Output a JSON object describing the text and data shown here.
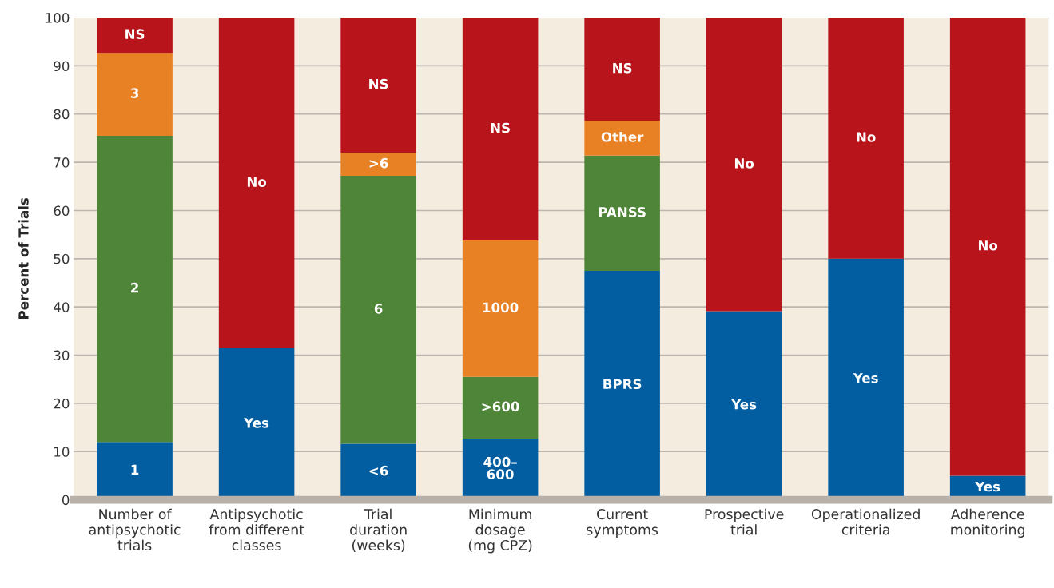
{
  "chart_data": {
    "type": "bar",
    "stacked": true,
    "ylabel": "Percent of Trials",
    "categories": [
      "Number of\nantipsychotic\ntrials",
      "Antipsychotic\nfrom different\nclasses",
      "Trial\nduration\n(weeks)",
      "Minimum\ndosage\n(mg CPZ)",
      "Current\nsymptoms",
      "Prospective\ntrial",
      "Operationalized\ncriteria",
      "Adherence\nmonitoring"
    ],
    "series": [
      {
        "name": "1",
        "color": "#035ea1",
        "values": [
          12.0,
          null,
          null,
          null,
          null,
          null,
          null,
          null
        ]
      },
      {
        "name": "Yes",
        "color": "#035ea1",
        "values": [
          null,
          31.4,
          null,
          null,
          null,
          39.1,
          50.0,
          5.0
        ]
      },
      {
        "name": "<6",
        "color": "#035ea1",
        "values": [
          null,
          null,
          11.6,
          null,
          null,
          null,
          null,
          null
        ]
      },
      {
        "name": "400–\n600",
        "color": "#035ea1",
        "values": [
          null,
          null,
          null,
          12.7,
          null,
          null,
          null,
          null
        ]
      },
      {
        "name": "BPRS",
        "color": "#035ea1",
        "values": [
          null,
          null,
          null,
          null,
          47.5,
          null,
          null,
          null
        ]
      },
      {
        "name": "2",
        "color": "#4f8538",
        "values": [
          63.5,
          null,
          null,
          null,
          null,
          null,
          null,
          null
        ]
      },
      {
        "name": "6",
        "color": "#4f8538",
        "values": [
          null,
          null,
          55.6,
          null,
          null,
          null,
          null,
          null
        ]
      },
      {
        "name": ">600",
        "color": "#4f8538",
        "values": [
          null,
          null,
          null,
          12.8,
          null,
          null,
          null,
          null
        ]
      },
      {
        "name": "PANSS",
        "color": "#4f8538",
        "values": [
          null,
          null,
          null,
          null,
          23.9,
          null,
          null,
          null
        ]
      },
      {
        "name": "3",
        "color": "#e88024",
        "values": [
          17.2,
          null,
          null,
          null,
          null,
          null,
          null,
          null
        ]
      },
      {
        "name": ">6",
        "color": "#e88024",
        "values": [
          null,
          null,
          4.8,
          null,
          null,
          null,
          null,
          null
        ]
      },
      {
        "name": "1000",
        "color": "#e88024",
        "values": [
          null,
          null,
          null,
          28.3,
          null,
          null,
          null,
          null
        ]
      },
      {
        "name": "Other",
        "color": "#e88024",
        "values": [
          null,
          null,
          null,
          null,
          7.2,
          null,
          null,
          null
        ]
      },
      {
        "name": "NS",
        "color": "#b8141b",
        "values": [
          7.3,
          null,
          28.0,
          46.2,
          21.4,
          null,
          null,
          null
        ]
      },
      {
        "name": "No",
        "color": "#b8141b",
        "values": [
          null,
          68.6,
          null,
          null,
          null,
          60.9,
          50.0,
          95.0
        ]
      }
    ],
    "ylim": [
      0,
      100
    ],
    "yticks": [
      0,
      10,
      20,
      30,
      40,
      50,
      60,
      70,
      80,
      90,
      100
    ],
    "grid": "y",
    "legend": false
  }
}
